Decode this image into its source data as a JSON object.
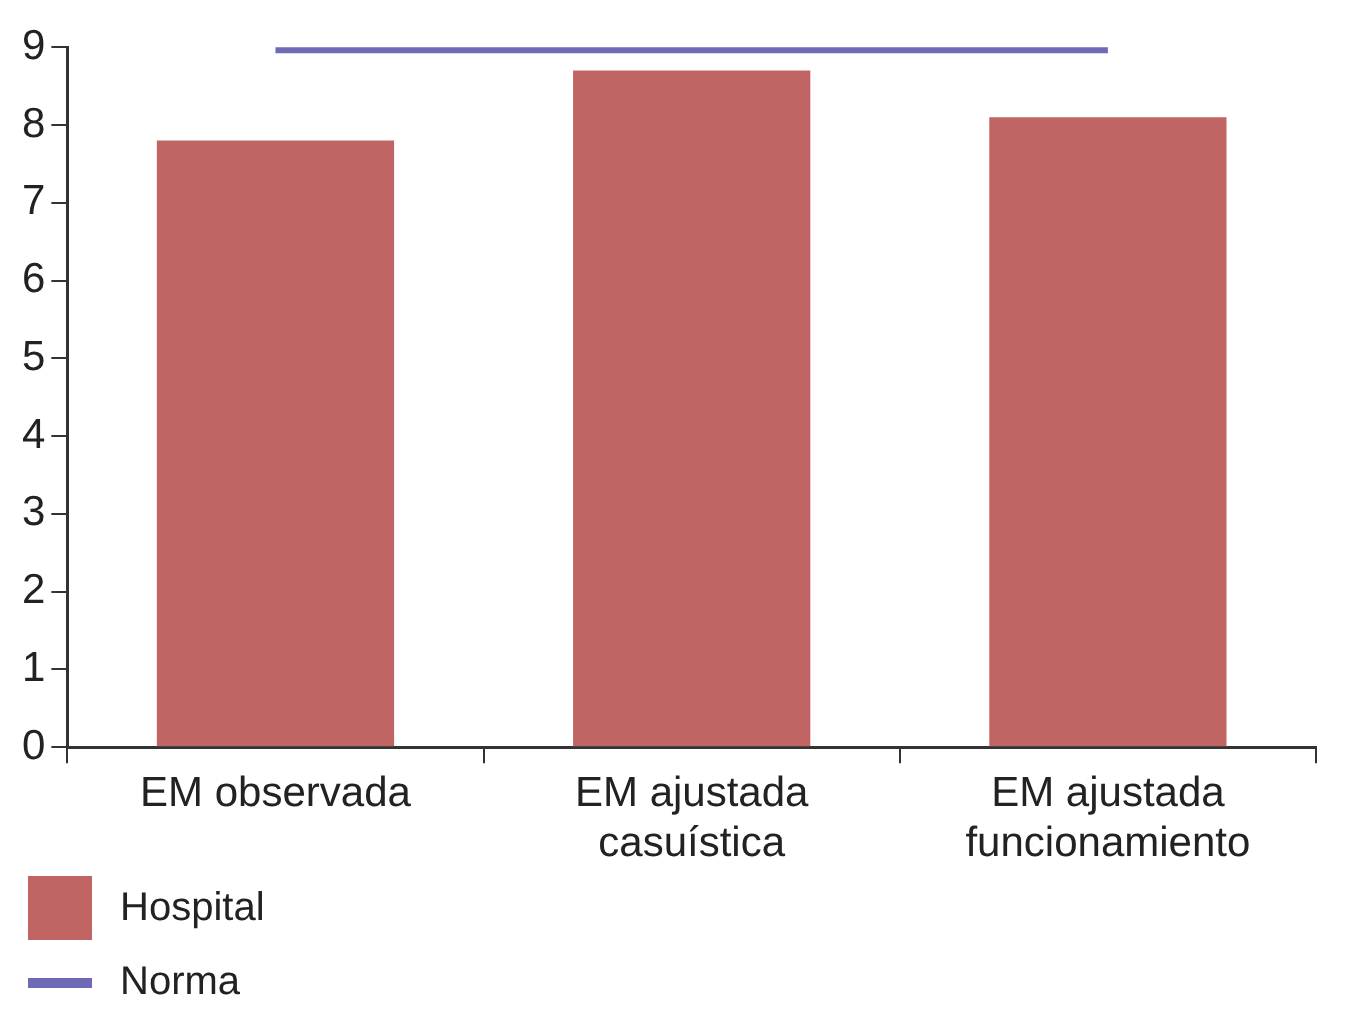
{
  "chart_data": {
    "type": "bar",
    "categories": [
      "EM observada",
      "EM ajustada casuística",
      "EM ajustada funcionamiento"
    ],
    "series": [
      {
        "name": "Hospital",
        "color": "#c06464",
        "values": [
          7.8,
          8.7,
          8.1
        ]
      },
      {
        "name": "Norma",
        "type": "line",
        "color": "#6f6ab5",
        "values": [
          9,
          9,
          9
        ]
      }
    ],
    "ylim": [
      0,
      9
    ],
    "yticks": [
      0,
      1,
      2,
      3,
      4,
      5,
      6,
      7,
      8,
      9
    ],
    "grid": false,
    "legend": "bottom left",
    "marker": "none",
    "line_style": "solid"
  }
}
